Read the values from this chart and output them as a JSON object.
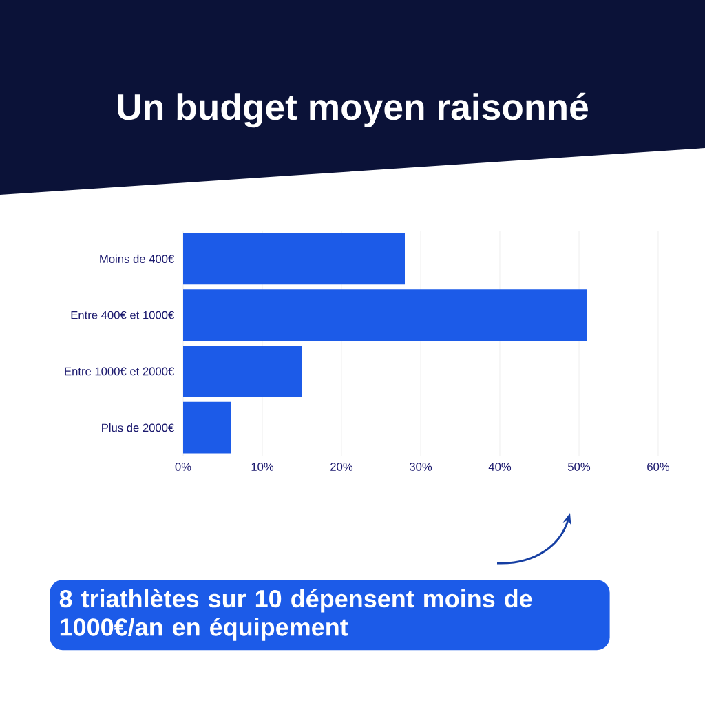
{
  "chart_data": {
    "type": "bar",
    "orientation": "horizontal",
    "title": "Un budget moyen raisonné",
    "categories": [
      "Moins de 400€",
      "Entre 400€ et 1000€",
      "Entre 1000€ et 2000€",
      "Plus de 2000€"
    ],
    "values": [
      28,
      51,
      15,
      6
    ],
    "color": "#1c5be8",
    "xlim": [
      0,
      60
    ],
    "xticks": [
      {
        "value": 0,
        "label": "0%"
      },
      {
        "value": 10,
        "label": "10%"
      },
      {
        "value": 20,
        "label": "20%"
      },
      {
        "value": 30,
        "label": "30%"
      },
      {
        "value": 40,
        "label": "40%"
      },
      {
        "value": 50,
        "label": "50%"
      },
      {
        "value": 60,
        "label": "60%"
      }
    ],
    "grid": "x",
    "annotations": [
      "8 triathlètes sur 10 dépensent moins de 1000€/an en équipement"
    ]
  }
}
